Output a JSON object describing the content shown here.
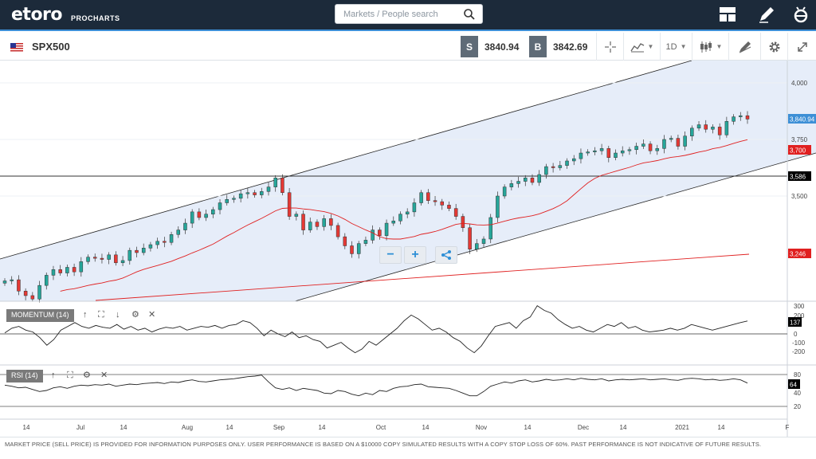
{
  "header": {
    "logo": "etoro",
    "logo_sub": "PROCHARTS",
    "search_placeholder": "Markets / People search"
  },
  "instrument": {
    "symbol": "SPX500",
    "sell_tag": "S",
    "sell_price": "3840.94",
    "buy_tag": "B",
    "buy_price": "3842.69",
    "interval": "1D"
  },
  "chart_data": {
    "type": "candlestick",
    "instrument": "SPX500",
    "interval": "1D",
    "y_ticks": [
      "4,000",
      "3,750",
      "3,500"
    ],
    "x_ticks": [
      "14",
      "Jul",
      "14",
      "Aug",
      "14",
      "Sep",
      "14",
      "Oct",
      "14",
      "Nov",
      "14",
      "Dec",
      "14",
      "2021",
      "14",
      "F"
    ],
    "price_labels": [
      {
        "text": "3,840.94",
        "color": "#3d8fd6"
      },
      {
        "text": "3,700",
        "color": "#e02020"
      },
      {
        "text": "3,586",
        "color": "#000000"
      },
      {
        "text": "3,246",
        "color": "#e02020"
      }
    ],
    "last_close": 3840.94,
    "horizontal_line": 3586,
    "close_series": [
      3125,
      3130,
      3080,
      3060,
      3045,
      3105,
      3150,
      3175,
      3160,
      3185,
      3165,
      3210,
      3230,
      3225,
      3220,
      3240,
      3205,
      3215,
      3260,
      3250,
      3270,
      3285,
      3300,
      3295,
      3330,
      3350,
      3380,
      3430,
      3405,
      3420,
      3440,
      3470,
      3485,
      3490,
      3510,
      3515,
      3505,
      3520,
      3540,
      3580,
      3515,
      3410,
      3420,
      3350,
      3385,
      3365,
      3400,
      3370,
      3320,
      3280,
      3245,
      3290,
      3305,
      3350,
      3325,
      3380,
      3390,
      3420,
      3430,
      3470,
      3515,
      3480,
      3475,
      3460,
      3445,
      3410,
      3360,
      3265,
      3290,
      3310,
      3405,
      3500,
      3540,
      3555,
      3565,
      3580,
      3560,
      3595,
      3630,
      3625,
      3635,
      3655,
      3665,
      3690,
      3695,
      3700,
      3710,
      3670,
      3690,
      3700,
      3705,
      3720,
      3730,
      3700,
      3710,
      3750,
      3755,
      3720,
      3765,
      3800,
      3815,
      3795,
      3805,
      3770,
      3830,
      3850,
      3855,
      3840
    ],
    "momentum": {
      "name": "MOMENTUM (14)",
      "period": 14,
      "ticks": [
        "300",
        "200",
        "0",
        "-100",
        "-200"
      ],
      "last_value_label": "137",
      "series": [
        10,
        60,
        80,
        40,
        20,
        -40,
        -120,
        -60,
        40,
        80,
        120,
        80,
        60,
        90,
        70,
        60,
        100,
        50,
        80,
        40,
        60,
        20,
        50,
        70,
        60,
        80,
        40,
        60,
        80,
        70,
        90,
        60,
        90,
        100,
        140,
        120,
        60,
        -20,
        40,
        0,
        -30,
        20,
        -40,
        -20,
        -60,
        -80,
        -150,
        -120,
        -90,
        -150,
        -200,
        -160,
        -80,
        -120,
        -60,
        0,
        60,
        140,
        200,
        160,
        100,
        40,
        60,
        20,
        -40,
        -80,
        -150,
        -200,
        -130,
        -20,
        80,
        100,
        120,
        60,
        140,
        180,
        300,
        250,
        220,
        150,
        100,
        60,
        80,
        40,
        20,
        60,
        100,
        80,
        120,
        60,
        80,
        40,
        20,
        30,
        40,
        60,
        40,
        60,
        100,
        80,
        60,
        40,
        60,
        80,
        100,
        120,
        137
      ]
    },
    "rsi": {
      "name": "RSI (14)",
      "period": 14,
      "ticks": [
        "80",
        "40",
        "20"
      ],
      "last_value_label": "64",
      "series": [
        60,
        58,
        55,
        56,
        52,
        48,
        50,
        55,
        57,
        54,
        58,
        60,
        59,
        61,
        60,
        62,
        58,
        60,
        62,
        61,
        63,
        64,
        65,
        63,
        66,
        65,
        68,
        70,
        67,
        66,
        68,
        70,
        71,
        72,
        74,
        76,
        77,
        79,
        66,
        55,
        52,
        55,
        50,
        54,
        52,
        50,
        45,
        44,
        50,
        48,
        43,
        40,
        45,
        42,
        50,
        48,
        54,
        57,
        58,
        61,
        62,
        57,
        56,
        55,
        54,
        50,
        45,
        40,
        40,
        48,
        58,
        62,
        66,
        64,
        68,
        70,
        66,
        68,
        71,
        69,
        70,
        72,
        70,
        73,
        71,
        70,
        72,
        68,
        70,
        71,
        70,
        71,
        72,
        70,
        71,
        72,
        70,
        69,
        72,
        73,
        72,
        70,
        71,
        69,
        70,
        72,
        70,
        64
      ]
    }
  },
  "indicators": {
    "momentum_label": "MOMENTUM (14)",
    "rsi_label": "RSI (14)"
  },
  "zoom": {
    "minus": "−",
    "plus": "+"
  },
  "footer": {
    "disclaimer": "MARKET PRICE (SELL PRICE) IS PROVIDED FOR INFORMATION PURPOSES ONLY. USER PERFORMANCE IS BASED ON A $10000 COPY SIMULATED RESULTS WITH A COPY STOP LOSS OF 60%. PAST PERFORMANCE IS NOT INDICATIVE OF FUTURE RESULTS."
  },
  "colors": {
    "topbar": "#1c2a3a",
    "accent": "#3d8fd6",
    "channel_fill": "#e6edf9",
    "up": "#26a69a",
    "down": "#e53935",
    "ma": "#e02020"
  }
}
